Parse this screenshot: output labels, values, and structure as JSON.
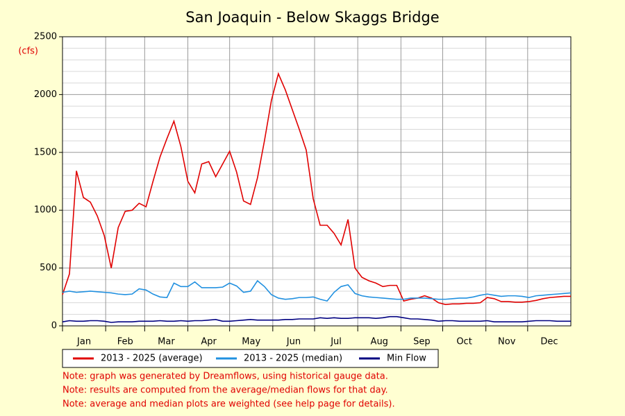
{
  "chart_data": {
    "type": "line",
    "title": "San Joaquin - Below Skaggs Bridge",
    "y_unit": "(cfs)",
    "x": [
      0,
      5,
      10,
      15,
      20,
      25,
      30,
      35,
      40,
      45,
      50,
      55,
      60,
      65,
      70,
      75,
      80,
      85,
      90,
      95,
      100,
      105,
      110,
      115,
      120,
      125,
      130,
      135,
      140,
      145,
      150,
      155,
      160,
      165,
      170,
      175,
      180,
      185,
      190,
      195,
      200,
      205,
      210,
      215,
      220,
      225,
      230,
      235,
      240,
      245,
      250,
      255,
      260,
      265,
      270,
      275,
      280,
      285,
      290,
      295,
      300,
      305,
      310,
      315,
      320,
      325,
      330,
      335,
      340,
      345,
      350,
      355,
      360,
      365
    ],
    "xlim": [
      0,
      365
    ],
    "xticks": [
      {
        "value": 0,
        "label": "Jan"
      },
      {
        "value": 31,
        "label": "Feb"
      },
      {
        "value": 59,
        "label": "Mar"
      },
      {
        "value": 90,
        "label": "Apr"
      },
      {
        "value": 120,
        "label": "May"
      },
      {
        "value": 151,
        "label": "Jun"
      },
      {
        "value": 181,
        "label": "Jul"
      },
      {
        "value": 212,
        "label": "Aug"
      },
      {
        "value": 243,
        "label": "Sep"
      },
      {
        "value": 273,
        "label": "Oct"
      },
      {
        "value": 304,
        "label": "Nov"
      },
      {
        "value": 334,
        "label": "Dec"
      }
    ],
    "ylim": [
      0,
      2500
    ],
    "yticks": [
      0,
      500,
      1000,
      1500,
      2000,
      2500
    ],
    "yminor": [
      100,
      200,
      300,
      400,
      600,
      700,
      800,
      900,
      1100,
      1200,
      1300,
      1400,
      1600,
      1700,
      1800,
      1900,
      2100,
      2200,
      2300,
      2400
    ],
    "grid": true,
    "series": [
      {
        "name": "2013 - 2025 (average)",
        "color": "#e00000",
        "values": [
          270,
          450,
          1340,
          1110,
          1070,
          950,
          780,
          500,
          850,
          990,
          1000,
          1060,
          1030,
          1250,
          1460,
          1620,
          1770,
          1550,
          1250,
          1150,
          1400,
          1420,
          1290,
          1400,
          1510,
          1330,
          1080,
          1050,
          1280,
          1600,
          1950,
          2180,
          2040,
          1870,
          1700,
          1520,
          1100,
          870,
          870,
          800,
          700,
          920,
          500,
          420,
          390,
          370,
          340,
          350,
          350,
          215,
          230,
          240,
          260,
          240,
          200,
          185,
          190,
          190,
          195,
          195,
          200,
          245,
          235,
          210,
          210,
          205,
          205,
          210,
          220,
          235,
          245,
          250,
          255,
          255
        ]
      },
      {
        "name": "2013 - 2025 (median)",
        "color": "#2090e0",
        "values": [
          290,
          300,
          290,
          295,
          300,
          295,
          290,
          285,
          275,
          270,
          275,
          320,
          310,
          275,
          250,
          245,
          370,
          340,
          340,
          380,
          330,
          330,
          330,
          335,
          370,
          345,
          290,
          300,
          390,
          340,
          270,
          240,
          230,
          235,
          245,
          245,
          250,
          230,
          215,
          290,
          340,
          355,
          280,
          260,
          250,
          245,
          240,
          235,
          230,
          230,
          240,
          240,
          240,
          235,
          230,
          230,
          235,
          240,
          240,
          250,
          265,
          275,
          265,
          255,
          260,
          260,
          255,
          245,
          260,
          265,
          270,
          275,
          280,
          285
        ]
      },
      {
        "name": "Min Flow",
        "color": "#000080",
        "values": [
          35,
          45,
          40,
          40,
          45,
          45,
          40,
          30,
          35,
          35,
          35,
          40,
          40,
          40,
          45,
          40,
          40,
          45,
          40,
          45,
          45,
          50,
          55,
          40,
          40,
          45,
          50,
          55,
          50,
          50,
          50,
          50,
          55,
          55,
          60,
          60,
          60,
          70,
          65,
          70,
          65,
          65,
          70,
          70,
          70,
          65,
          70,
          80,
          80,
          70,
          60,
          60,
          55,
          50,
          40,
          45,
          45,
          40,
          40,
          40,
          40,
          45,
          35,
          35,
          35,
          35,
          35,
          40,
          45,
          45,
          45,
          40,
          40,
          40
        ]
      }
    ],
    "notes": [
      "Note: graph was generated by Dreamflows, using historical gauge data.",
      "Note: results are computed from the average/median flows for that day.",
      "Note: average and median plots are weighted (see help page for details)."
    ]
  }
}
